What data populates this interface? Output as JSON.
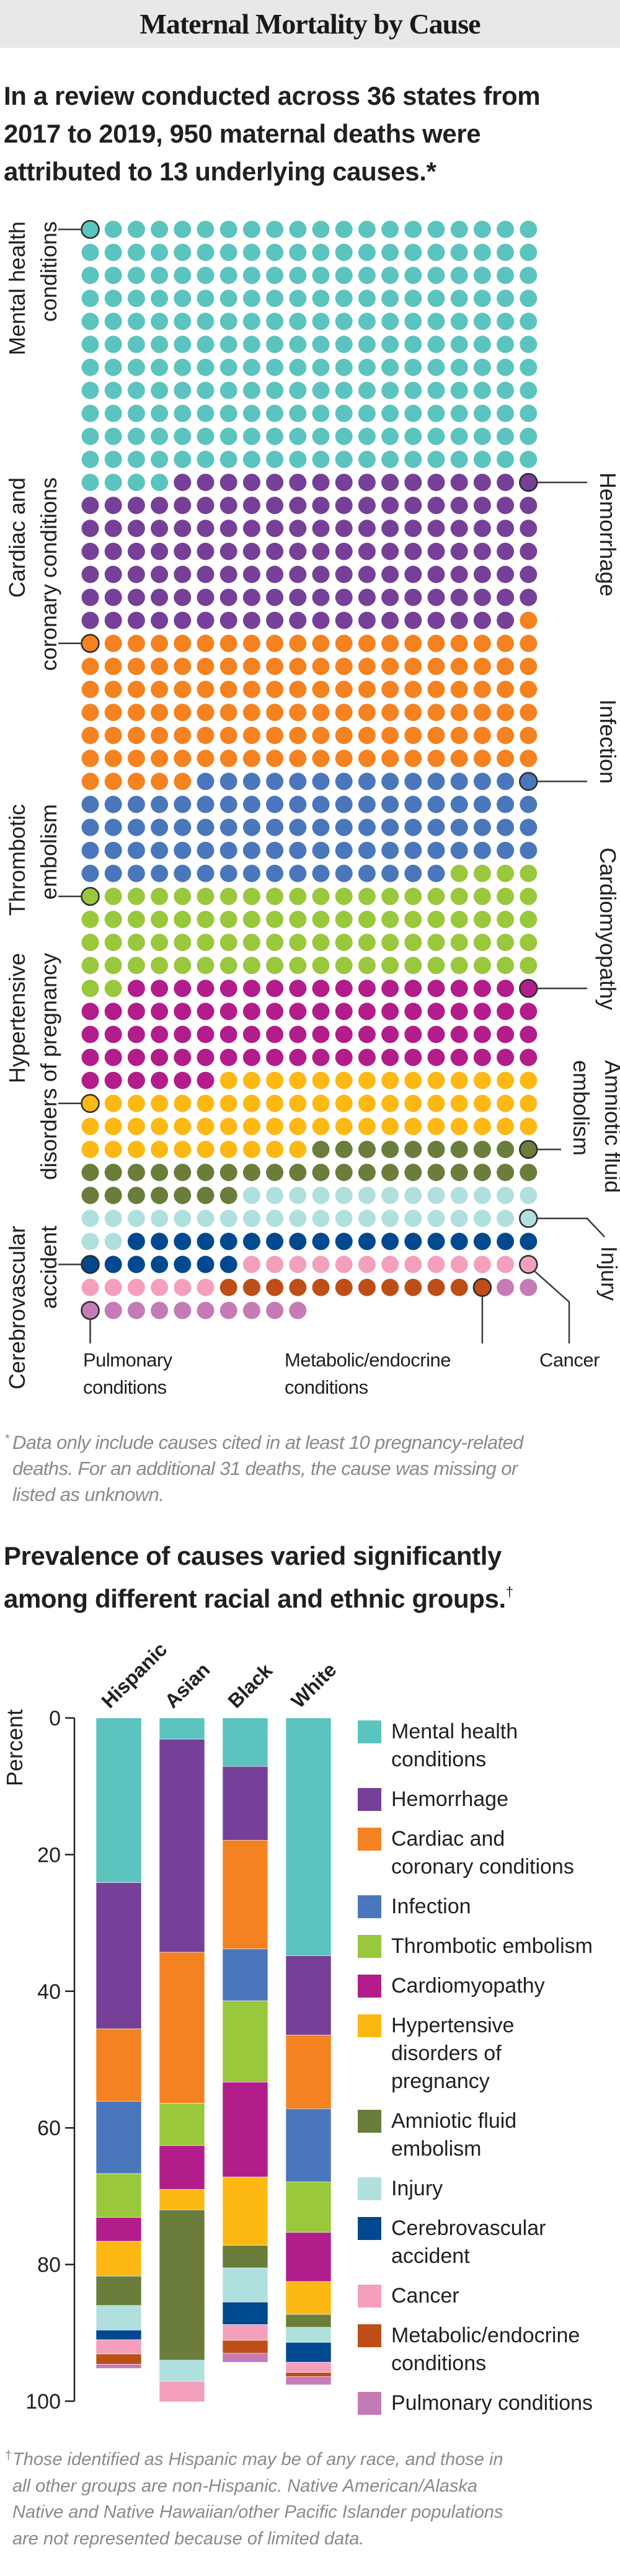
{
  "header": {
    "title": "Maternal Mortality by Cause"
  },
  "section1": {
    "heading_lines": [
      "In a review conducted across 36 states from",
      "2017 to 2019, 950 maternal deaths were",
      "attributed to 13 underlying causes.*"
    ],
    "footnote_marker": "*",
    "footnote_lines": [
      "Data only include causes cited in at least 10 pregnancy-related",
      "deaths. For an additional 31 deaths, the cause was missing or",
      "listed as unknown."
    ]
  },
  "section2": {
    "heading_lines": [
      "Prevalence of causes varied significantly",
      "among different racial and ethnic groups."
    ],
    "heading_marker": "†",
    "footnote_marker": "†",
    "footnote_lines": [
      "Those identified as Hispanic may be of any race, and those in",
      "all other groups are non-Hispanic. Native American/Alaska",
      "Native and Native Hawaiian/other Pacific Islander populations",
      "are not represented because of limited data."
    ]
  },
  "chart_data": [
    {
      "type": "waffle",
      "total": 950,
      "columns": 20,
      "categories": [
        {
          "label_lines": [
            "Mental health",
            "conditions"
          ],
          "count": 224,
          "color": "#5bc4bf"
        },
        {
          "label_lines": [
            "Hemorrhage"
          ],
          "count": 135,
          "color": "#763f98"
        },
        {
          "label_lines": [
            "Cardiac and",
            "coronary conditions"
          ],
          "count": 126,
          "color": "#f58220"
        },
        {
          "label_lines": [
            "Infection"
          ],
          "count": 91,
          "color": "#4a77bb"
        },
        {
          "label_lines": [
            "Thrombotic",
            "embolism"
          ],
          "count": 86,
          "color": "#99c83c"
        },
        {
          "label_lines": [
            "Cardiomyopathy"
          ],
          "count": 84,
          "color": "#b21c8b"
        },
        {
          "label_lines": [
            "Hypertensive",
            "disorders of pregnancy"
          ],
          "count": 64,
          "color": "#fdb813"
        },
        {
          "label_lines": [
            "Amniotic fluid",
            "embolism"
          ],
          "count": 37,
          "color": "#6a7d3b"
        },
        {
          "label_lines": [
            "Injury"
          ],
          "count": 35,
          "color": "#b0e0dd"
        },
        {
          "label_lines": [
            "Cerebrovascular",
            "accident"
          ],
          "count": 25,
          "color": "#004990"
        },
        {
          "label_lines": [
            "Cancer"
          ],
          "count": 19,
          "color": "#f4a0bc"
        },
        {
          "label_lines": [
            "Metabolic/endocrine",
            "conditions"
          ],
          "count": 12,
          "color": "#bd4e17"
        },
        {
          "label_lines": [
            "Pulmonary",
            "conditions"
          ],
          "count": 12,
          "color": "#c57bb6"
        }
      ]
    },
    {
      "type": "bar",
      "stacked": true,
      "categories": [
        "Hispanic",
        "Asian",
        "Black",
        "White"
      ],
      "ylabel": "Percent",
      "ylim": [
        0,
        100
      ],
      "y_inverted": true,
      "yticks": [
        0,
        20,
        40,
        60,
        80,
        100
      ],
      "legend_position": "right",
      "series": [
        {
          "name_lines": [
            "Mental health",
            "conditions"
          ],
          "color": "#5bc4bf",
          "values": [
            24.1,
            3.1,
            7.1,
            34.8
          ]
        },
        {
          "name_lines": [
            "Hemorrhage"
          ],
          "color": "#763f98",
          "values": [
            21.4,
            31.2,
            10.8,
            11.6
          ]
        },
        {
          "name_lines": [
            "Cardiac and",
            "coronary conditions"
          ],
          "color": "#f58220",
          "values": [
            10.6,
            22.1,
            15.9,
            10.8
          ]
        },
        {
          "name_lines": [
            "Infection"
          ],
          "color": "#4a77bb",
          "values": [
            10.6,
            0,
            7.6,
            10.7
          ]
        },
        {
          "name_lines": [
            "Thrombotic embolism"
          ],
          "color": "#99c83c",
          "values": [
            6.4,
            6.2,
            11.9,
            7.4
          ]
        },
        {
          "name_lines": [
            "Cardiomyopathy"
          ],
          "color": "#b21c8b",
          "values": [
            3.5,
            6.4,
            13.9,
            7.2
          ]
        },
        {
          "name_lines": [
            "Hypertensive",
            "disorders of",
            "pregnancy"
          ],
          "color": "#fdb813",
          "values": [
            5.1,
            3.0,
            10.0,
            4.8
          ]
        },
        {
          "name_lines": [
            "Amniotic fluid",
            "embolism"
          ],
          "color": "#6a7d3b",
          "values": [
            4.3,
            22.0,
            3.3,
            1.9
          ]
        },
        {
          "name_lines": [
            "Injury"
          ],
          "color": "#b0e0dd",
          "values": [
            3.6,
            3.1,
            5.0,
            2.2
          ]
        },
        {
          "name_lines": [
            "Cerebrovascular",
            "accident"
          ],
          "color": "#004990",
          "values": [
            1.4,
            0,
            3.3,
            2.9
          ]
        },
        {
          "name_lines": [
            "Cancer"
          ],
          "color": "#f4a0bc",
          "values": [
            2.1,
            3.0,
            2.3,
            1.5
          ]
        },
        {
          "name_lines": [
            "Metabolic/endocrine",
            "conditions"
          ],
          "color": "#bd4e17",
          "values": [
            1.5,
            0,
            1.9,
            0.6
          ]
        },
        {
          "name_lines": [
            "Pulmonary conditions"
          ],
          "color": "#c57bb6",
          "values": [
            0.6,
            0,
            1.3,
            1.2
          ]
        }
      ]
    }
  ]
}
